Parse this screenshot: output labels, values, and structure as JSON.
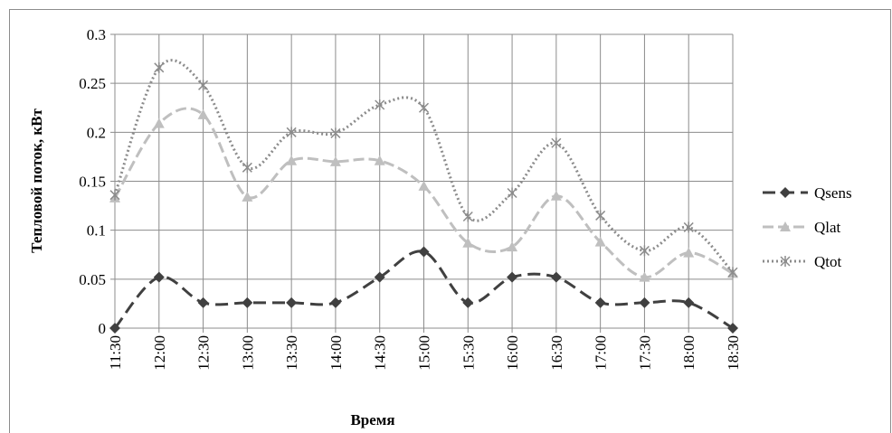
{
  "chart_data": {
    "type": "line",
    "x_label": "Время",
    "y_label": "Тепловой поток, кВт",
    "categories": [
      "11:30",
      "12:00",
      "12:30",
      "13:00",
      "13:30",
      "14:00",
      "14:30",
      "15:00",
      "15:30",
      "16:00",
      "16:30",
      "17:00",
      "17:30",
      "18:00",
      "18:30"
    ],
    "series": [
      {
        "name": "Qsens",
        "color": "#404040",
        "values": [
          0,
          0.052,
          0.026,
          0.026,
          0.026,
          0.026,
          0.052,
          0.078,
          0.026,
          0.052,
          0.052,
          0.026,
          0.026,
          0.026,
          0
        ]
      },
      {
        "name": "Qlat",
        "color": "#bfbfbf",
        "values": [
          0.133,
          0.209,
          0.218,
          0.134,
          0.171,
          0.17,
          0.171,
          0.145,
          0.087,
          0.083,
          0.135,
          0.088,
          0.052,
          0.077,
          0.056
        ]
      },
      {
        "name": "Qtot",
        "color": "#8c8c8c",
        "values": [
          0.136,
          0.266,
          0.248,
          0.164,
          0.2,
          0.199,
          0.228,
          0.225,
          0.114,
          0.138,
          0.189,
          0.115,
          0.079,
          0.103,
          0.057
        ]
      }
    ],
    "ylim": [
      0,
      0.3
    ],
    "yticks": [
      0,
      0.05,
      0.1,
      0.15,
      0.2,
      0.25,
      0.3
    ],
    "grid": true,
    "legend": "right"
  }
}
